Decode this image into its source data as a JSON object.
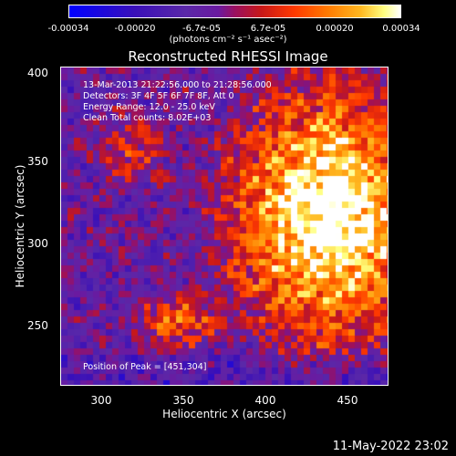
{
  "colorbar": {
    "ticks": [
      "-0.00034",
      "-0.00020",
      "-6.7e-05",
      "6.7e-05",
      "0.00020",
      "0.00034"
    ],
    "unit": "(photons cm⁻² s⁻¹ asec⁻²)"
  },
  "annotations": {
    "time_range": "13-Mar-2013 21:22:56.000 to 21:28:56.000",
    "detectors": "Detectors: 3F 4F 5F 6F 7F 8F, Att 0",
    "energy_range": "Energy Range: 12.0 - 25.0 keV",
    "clean": "Clean    Total counts: 8.02E+03",
    "peak": "Position of Peak = [451,304]"
  },
  "footer": {
    "date": "11-May-2022 23:02"
  },
  "chart_data": {
    "type": "heatmap",
    "title": "Reconstructed RHESSI Image",
    "xlabel": "Heliocentric X (arcsec)",
    "ylabel": "Heliocentric Y (arcsec)",
    "xlim": [
      280,
      480
    ],
    "ylim": [
      207,
      402
    ],
    "xticks": [
      "300",
      "350",
      "400",
      "450"
    ],
    "yticks": [
      "250",
      "300",
      "350",
      "400"
    ],
    "color_range": [
      -0.00034,
      0.00034
    ],
    "peak": [
      451,
      304
    ],
    "colors": {
      "min": "#0000ff",
      "mid": "#6a1aa0",
      "max": "#ffffff"
    }
  }
}
